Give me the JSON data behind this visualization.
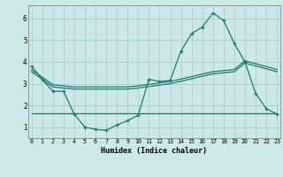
{
  "xlabel": "Humidex (Indice chaleur)",
  "bg_color": "#cce8e8",
  "grid_color": "#aacccc",
  "line_color": "#1a7a6e",
  "x_ticks": [
    0,
    1,
    2,
    3,
    4,
    5,
    6,
    7,
    8,
    9,
    10,
    11,
    12,
    13,
    14,
    15,
    16,
    17,
    18,
    19,
    20,
    21,
    22,
    23
  ],
  "ylim": [
    0.5,
    6.6
  ],
  "xlim": [
    -0.3,
    23.3
  ],
  "curve1_x": [
    0,
    1,
    2,
    3,
    4,
    5,
    6,
    7,
    8,
    9,
    10,
    11,
    12,
    13,
    14,
    15,
    16,
    17,
    18,
    19,
    20,
    21,
    22,
    23
  ],
  "curve1_y": [
    3.8,
    3.2,
    2.65,
    2.65,
    1.6,
    1.0,
    0.9,
    0.85,
    1.1,
    1.3,
    1.55,
    3.2,
    3.1,
    3.15,
    4.5,
    5.3,
    5.6,
    6.25,
    5.9,
    4.85,
    4.0,
    2.55,
    1.85,
    1.6
  ],
  "curve2_x": [
    0,
    23
  ],
  "curve2_y": [
    1.65,
    1.65
  ],
  "curve3_x": [
    0,
    2,
    4,
    9,
    10,
    13,
    17,
    19,
    20,
    23
  ],
  "curve3_y": [
    3.55,
    2.85,
    2.75,
    2.75,
    2.8,
    3.0,
    3.45,
    3.55,
    3.95,
    3.55
  ],
  "curve4_x": [
    0,
    2,
    4,
    9,
    10,
    13,
    17,
    19,
    20,
    23
  ],
  "curve4_y": [
    3.65,
    2.95,
    2.85,
    2.85,
    2.9,
    3.1,
    3.55,
    3.65,
    4.05,
    3.65
  ]
}
